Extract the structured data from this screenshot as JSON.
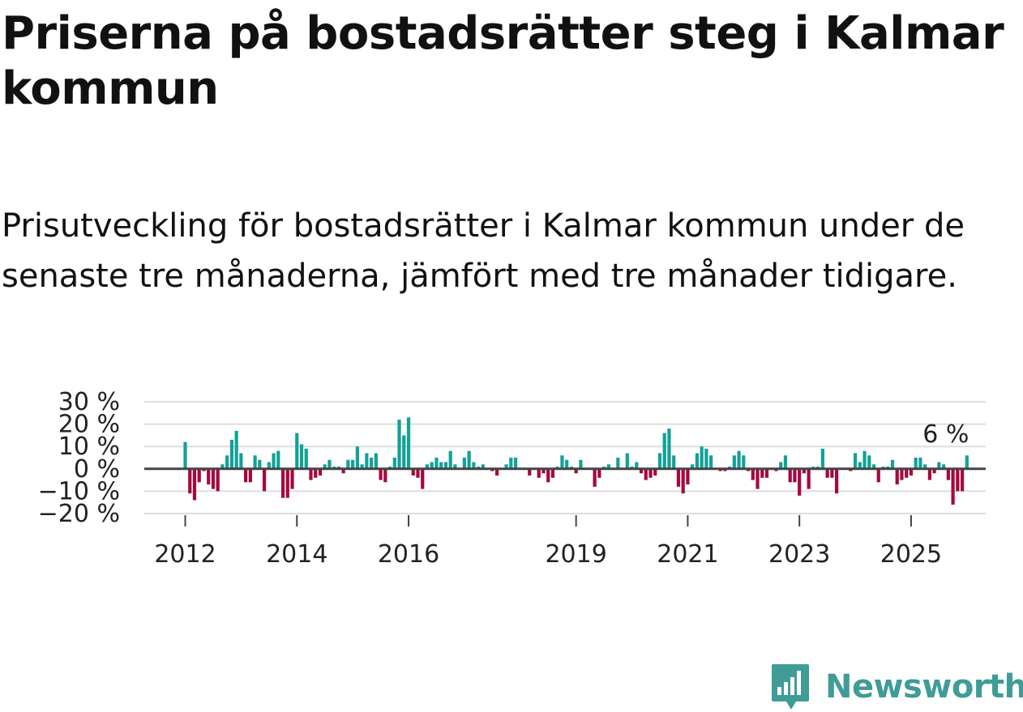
{
  "title": "Priserna på bostadsrätter steg i Kalmar kommun",
  "subtitle": "Prisutveckling för bostadsrätter i Kalmar kommun under de senaste tre månaderna, jämfört med tre månader tidigare.",
  "brand": "Newsworthy",
  "colors": {
    "positive": "#13a197",
    "negative": "#a5083f",
    "grid": "#dddddd",
    "zero_line": "#444444",
    "brand": "#3f9c96"
  },
  "chart_data": {
    "type": "bar",
    "title": "",
    "xlabel": "",
    "ylabel": "",
    "ylim": [
      -20,
      30
    ],
    "yticks": [
      30,
      20,
      10,
      0,
      -10,
      -20
    ],
    "ytick_labels": [
      "30 %",
      "20 %",
      "10 %",
      "0 %",
      "−10 %",
      "−20 %"
    ],
    "start": "2012-01",
    "xticks": [
      {
        "label": "2012",
        "index": 0
      },
      {
        "label": "2014",
        "index": 24
      },
      {
        "label": "2016",
        "index": 48
      },
      {
        "label": "2019",
        "index": 84
      },
      {
        "label": "2021",
        "index": 108
      },
      {
        "label": "2023",
        "index": 132
      },
      {
        "label": "2025",
        "index": 156
      }
    ],
    "last_value_label": "6 %",
    "values": [
      12,
      -11,
      -14,
      -6,
      -1,
      -7,
      -9,
      -10,
      2,
      6,
      13,
      17,
      7,
      -6,
      -6,
      6,
      4,
      -10,
      3,
      7,
      8,
      -13,
      -13,
      -9,
      16,
      11,
      9,
      -5,
      -4,
      -3,
      2,
      4,
      1,
      1,
      -2,
      4,
      4,
      10,
      2,
      7,
      5,
      7,
      -5,
      -6,
      1,
      5,
      22,
      15,
      23,
      -3,
      -4,
      -9,
      2,
      3,
      5,
      3,
      3,
      8,
      2,
      0,
      5,
      8,
      3,
      1,
      2,
      0,
      -1,
      -3,
      0,
      2,
      5,
      5,
      0,
      0,
      -3,
      0,
      -4,
      -2,
      -6,
      -4,
      1,
      6,
      4,
      1,
      -2,
      4,
      0,
      0,
      -8,
      -4,
      1,
      2,
      0,
      5,
      0,
      7,
      1,
      3,
      -2,
      -5,
      -4,
      -3,
      7,
      16,
      18,
      6,
      -8,
      -11,
      -7,
      2,
      7,
      10,
      9,
      6,
      0,
      -1,
      -1,
      1,
      6,
      8,
      6,
      -1,
      -5,
      -9,
      -4,
      -4,
      0,
      -1,
      3,
      6,
      -6,
      -6,
      -12,
      -2,
      -9,
      1,
      1,
      9,
      -4,
      -4,
      -11,
      0,
      0,
      -1,
      7,
      3,
      8,
      6,
      2,
      -6,
      1,
      1,
      4,
      -7,
      -5,
      -4,
      -3,
      5,
      5,
      2,
      -5,
      -2,
      3,
      2,
      -5,
      -16,
      -10,
      -10,
      6
    ]
  }
}
